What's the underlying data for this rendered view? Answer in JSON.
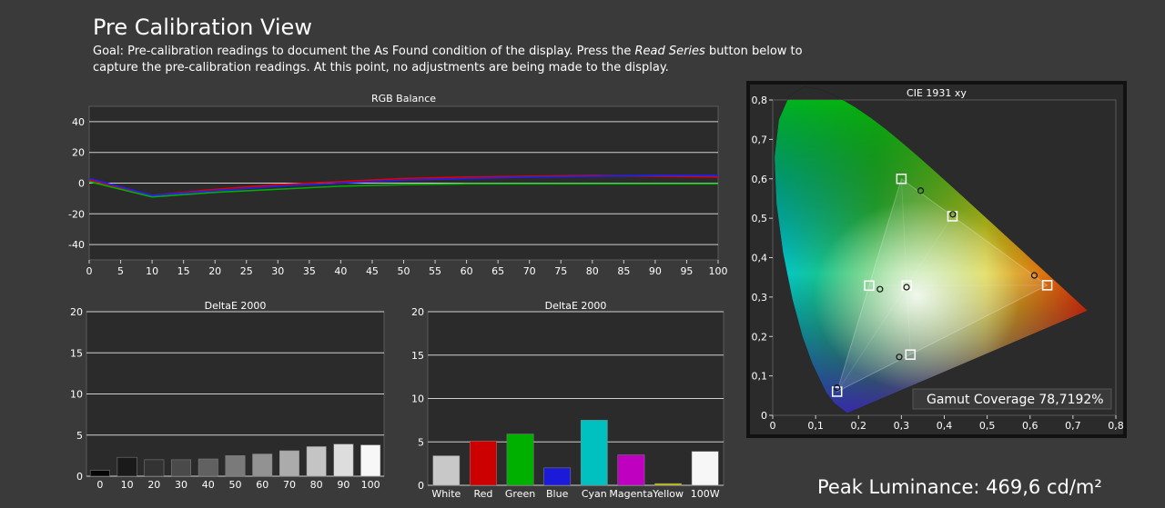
{
  "page": {
    "title": "Pre Calibration View",
    "goal_text_1": "Goal: Pre-calibration readings to document the As Found condition of the display. Press the ",
    "goal_emphasis": "Read Series",
    "goal_text_2": " button below to capture the pre-calibration readings. At this point, no adjustments are being made to the display.",
    "peak_luminance": "Peak Luminance: 469,6 cd/m²"
  },
  "chart_data": [
    {
      "type": "line",
      "title": "RGB Balance",
      "xlim": [
        0,
        100
      ],
      "ylim": [
        -50,
        50
      ],
      "xticks": [
        0,
        5,
        10,
        15,
        20,
        25,
        30,
        35,
        40,
        45,
        50,
        55,
        60,
        65,
        70,
        75,
        80,
        85,
        90,
        95,
        100
      ],
      "yticks": [
        -40,
        -20,
        0,
        20,
        40
      ],
      "grid": true,
      "x": [
        0,
        10,
        20,
        30,
        40,
        50,
        60,
        70,
        80,
        90,
        100
      ],
      "series": [
        {
          "color": "#e00000",
          "values": [
            2,
            -8,
            -4,
            -1,
            1,
            3,
            4,
            4.5,
            5,
            4.5,
            4
          ]
        },
        {
          "color": "#00b000",
          "values": [
            1,
            -9,
            -6,
            -4,
            -2,
            -1,
            -0.5,
            -0.5,
            -0.5,
            -0.5,
            -0.5
          ]
        },
        {
          "color": "#2020ff",
          "values": [
            3,
            -8,
            -5,
            -2,
            0,
            2,
            3,
            4,
            4.5,
            5,
            5
          ]
        }
      ]
    },
    {
      "type": "bar",
      "title": "DeltaE 2000",
      "categories": [
        "0",
        "10",
        "20",
        "30",
        "40",
        "50",
        "60",
        "70",
        "80",
        "90",
        "100"
      ],
      "values": [
        0.7,
        2.3,
        2.0,
        2.0,
        2.1,
        2.5,
        2.7,
        3.1,
        3.6,
        3.9,
        3.8
      ],
      "colors": [
        "#050505",
        "#1a1a1a",
        "#333333",
        "#4a4a4a",
        "#616161",
        "#7a7a7a",
        "#929292",
        "#ababab",
        "#c4c4c4",
        "#dddddd",
        "#f7f7f7"
      ],
      "ylim": [
        0,
        20
      ],
      "yticks": [
        0,
        5,
        10,
        15,
        20
      ],
      "grid": true
    },
    {
      "type": "bar",
      "title": "DeltaE 2000",
      "categories": [
        "White",
        "Red",
        "Green",
        "Blue",
        "Cyan",
        "Magenta",
        "Yellow",
        "100W"
      ],
      "values": [
        3.4,
        5.1,
        5.9,
        2.0,
        7.5,
        3.5,
        0.2,
        3.9
      ],
      "colors": [
        "#c8c8c8",
        "#cc0000",
        "#00b000",
        "#1a1ad8",
        "#00c0c0",
        "#c000c0",
        "#c8c800",
        "#f7f7f7"
      ],
      "ylim": [
        0,
        20
      ],
      "yticks": [
        0,
        5,
        10,
        15,
        20
      ],
      "grid": true
    },
    {
      "type": "scatter",
      "title": "CIE 1931 xy",
      "xlim": [
        0,
        0.8
      ],
      "ylim": [
        0,
        0.8
      ],
      "xticks": [
        "0",
        "0,1",
        "0,2",
        "0,3",
        "0,4",
        "0,5",
        "0,6",
        "0,7",
        "0,8"
      ],
      "yticks": [
        "0",
        "0,1",
        "0,2",
        "0,3",
        "0,4",
        "0,5",
        "0,6",
        "0,7",
        "0,8"
      ],
      "targets": [
        [
          0.64,
          0.33
        ],
        [
          0.3,
          0.6
        ],
        [
          0.15,
          0.06
        ],
        [
          0.3127,
          0.329
        ],
        [
          0.225,
          0.329
        ],
        [
          0.321,
          0.154
        ],
        [
          0.419,
          0.505
        ]
      ],
      "measured": [
        [
          0.61,
          0.355
        ],
        [
          0.345,
          0.57
        ],
        [
          0.15,
          0.07
        ],
        [
          0.312,
          0.325
        ],
        [
          0.25,
          0.32
        ],
        [
          0.295,
          0.148
        ],
        [
          0.42,
          0.51
        ]
      ],
      "gamut_label": "Gamut Coverage 78,7192%"
    }
  ]
}
